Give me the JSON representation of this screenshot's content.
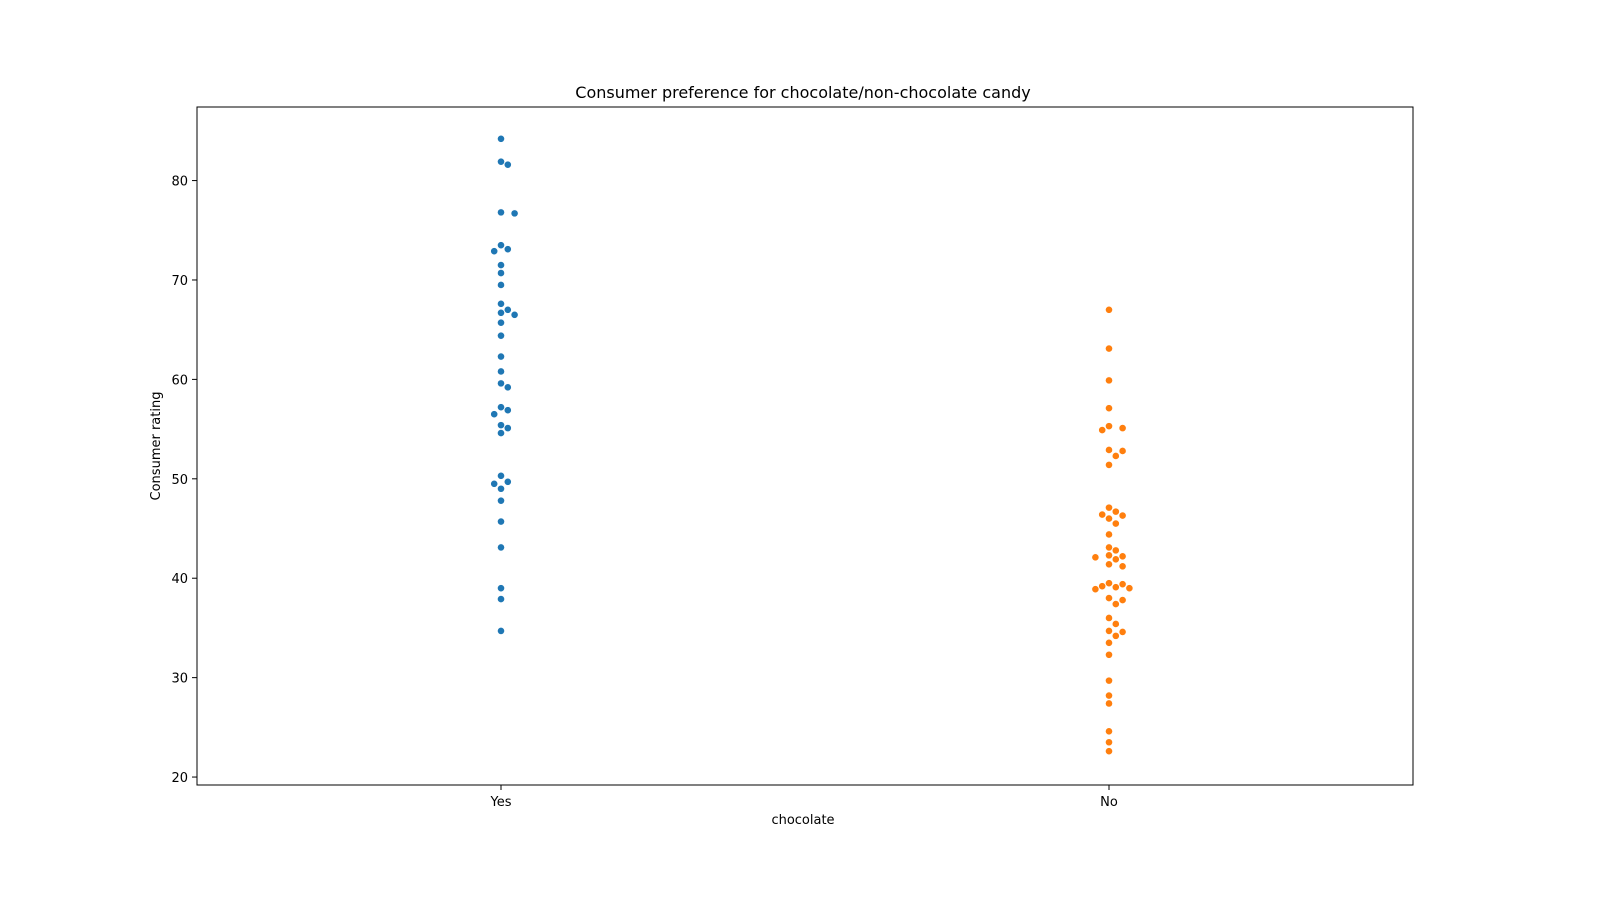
{
  "chart_data": {
    "type": "scatter",
    "title": "Consumer preference for chocolate/non-chocolate candy",
    "xlabel": "chocolate",
    "ylabel": "Consumer rating",
    "categories": [
      "Yes",
      "No"
    ],
    "ylim": [
      19.2,
      87.4
    ],
    "yticks": [
      20,
      30,
      40,
      50,
      60,
      70,
      80
    ],
    "grid": false,
    "series": [
      {
        "category": "Yes",
        "color": "#1f77b4",
        "values": [
          84.2,
          81.9,
          81.6,
          76.8,
          76.7,
          73.5,
          73.1,
          72.9,
          71.5,
          70.7,
          69.5,
          67.6,
          67.0,
          66.7,
          66.5,
          65.7,
          64.4,
          62.3,
          60.8,
          59.6,
          59.2,
          57.2,
          56.9,
          56.5,
          55.4,
          55.1,
          54.6,
          50.3,
          49.7,
          49.5,
          49.0,
          47.8,
          45.7,
          43.1,
          39.0,
          37.9,
          34.7
        ]
      },
      {
        "category": "No",
        "color": "#ff7f0e",
        "values": [
          67.0,
          63.1,
          59.9,
          57.1,
          55.3,
          55.1,
          54.9,
          52.9,
          52.8,
          52.3,
          51.4,
          47.1,
          46.7,
          46.4,
          46.3,
          46.0,
          45.5,
          44.4,
          43.1,
          42.8,
          42.3,
          42.2,
          42.1,
          41.9,
          41.4,
          41.2,
          39.5,
          39.4,
          39.2,
          39.1,
          39.0,
          38.9,
          38.0,
          37.8,
          37.4,
          36.0,
          35.4,
          34.7,
          34.6,
          34.2,
          33.5,
          32.3,
          29.7,
          28.2,
          27.4,
          24.6,
          23.5,
          22.6
        ]
      }
    ]
  }
}
